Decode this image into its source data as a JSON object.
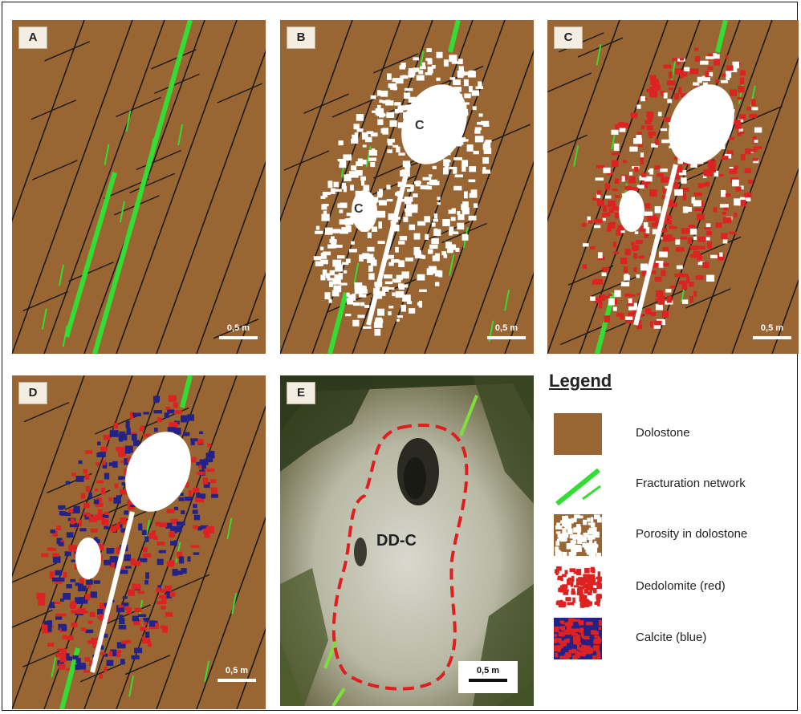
{
  "figure": {
    "panels": [
      {
        "letter": "A",
        "scale": "0,5 m"
      },
      {
        "letter": "B",
        "scale": "0,5 m",
        "cavity_labels": [
          "C",
          "C"
        ]
      },
      {
        "letter": "C",
        "scale": "0,5 m"
      },
      {
        "letter": "D",
        "scale": "0,5 m"
      },
      {
        "letter": "E",
        "scale": "0,5 m",
        "photo_label": "DD-C"
      }
    ],
    "legend": {
      "title": "Legend",
      "items": [
        {
          "label": "Dolostone",
          "swatch": "dolostone",
          "color": "#996633"
        },
        {
          "label": "Fracturation network",
          "swatch": "fracture",
          "color": "#33dd33"
        },
        {
          "label": "Porosity in dolostone",
          "swatch": "porosity",
          "color": "#996633"
        },
        {
          "label": "Dedolomite (red)",
          "swatch": "dedolomite",
          "color": "#dd2222"
        },
        {
          "label": "Calcite (blue)",
          "swatch": "calcite",
          "color": "#222288"
        }
      ]
    }
  }
}
